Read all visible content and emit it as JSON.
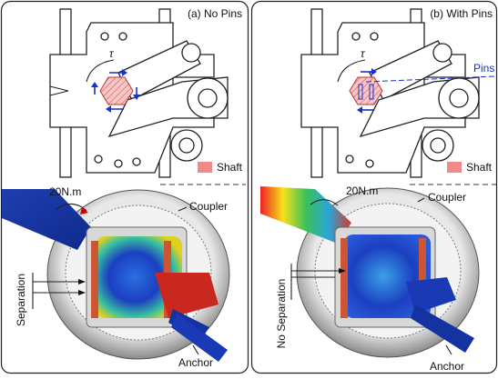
{
  "panels": [
    {
      "label": "(a) No Pins",
      "torque_symbol": "τ",
      "shaft_legend": "Shaft",
      "torque": "20N.m",
      "coupler": "Coupler",
      "separation": "Separation",
      "anchor": "Anchor"
    },
    {
      "label": "(b) With Pins",
      "torque_symbol": "τ",
      "pins": "Pins",
      "shaft_legend": "Shaft",
      "torque": "20N.m",
      "coupler": "Coupler",
      "separation": "No Separation",
      "anchor": "Anchor"
    }
  ]
}
